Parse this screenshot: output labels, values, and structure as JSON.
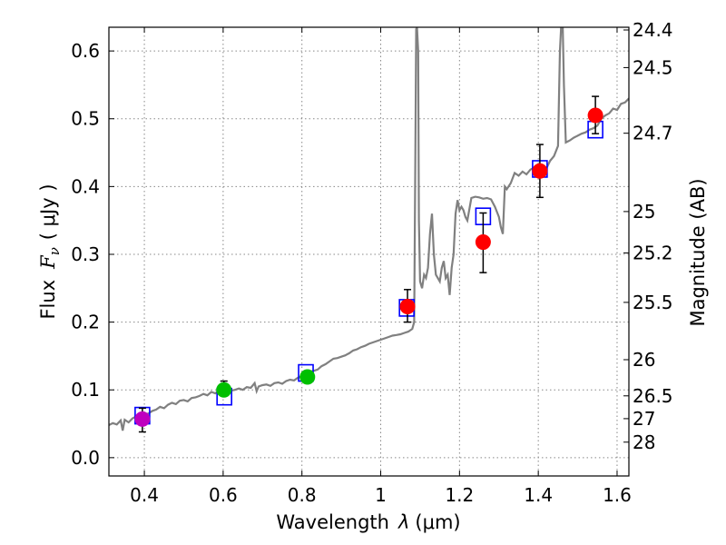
{
  "chart_data": {
    "type": "scatter",
    "xlabel_text": "Wavelength",
    "xlabel_symbol": "λ",
    "xlabel_unit": "(μm)",
    "ylabel_text": "Flux",
    "ylabel_symbol": "F",
    "ylabel_subscript": "ν",
    "ylabel_unit": "( μJy )",
    "y2label": "Magnitude (AB)",
    "xlim": [
      0.31,
      1.63
    ],
    "ylim": [
      -0.027,
      0.635
    ],
    "xticks": [
      {
        "v": 0.4,
        "label": "0.4"
      },
      {
        "v": 0.6,
        "label": "0.6"
      },
      {
        "v": 0.8,
        "label": "0.8"
      },
      {
        "v": 1.0,
        "label": "1"
      },
      {
        "v": 1.2,
        "label": "1.2"
      },
      {
        "v": 1.4,
        "label": "1.4"
      },
      {
        "v": 1.6,
        "label": "1.6"
      }
    ],
    "yticks": [
      {
        "v": 0.0,
        "label": "0.0"
      },
      {
        "v": 0.1,
        "label": "0.1"
      },
      {
        "v": 0.2,
        "label": "0.2"
      },
      {
        "v": 0.3,
        "label": "0.3"
      },
      {
        "v": 0.4,
        "label": "0.4"
      },
      {
        "v": 0.5,
        "label": "0.5"
      },
      {
        "v": 0.6,
        "label": "0.6"
      }
    ],
    "mag_ticks": [
      {
        "mag": 24.4,
        "label": "24.4"
      },
      {
        "mag": 24.5,
        "label": "24.5"
      },
      {
        "mag": 24.7,
        "label": "24.7"
      },
      {
        "mag": 25.0,
        "label": "25"
      },
      {
        "mag": 25.2,
        "label": "25.2"
      },
      {
        "mag": 25.5,
        "label": "25.5"
      },
      {
        "mag": 26.0,
        "label": "26"
      },
      {
        "mag": 26.5,
        "label": "26.5"
      },
      {
        "mag": 27.0,
        "label": "27"
      },
      {
        "mag": 28.0,
        "label": "28"
      }
    ],
    "spectrum": {
      "color": "#808080",
      "points": [
        [
          0.31,
          0.048
        ],
        [
          0.32,
          0.051
        ],
        [
          0.33,
          0.049
        ],
        [
          0.34,
          0.055
        ],
        [
          0.345,
          0.04
        ],
        [
          0.35,
          0.056
        ],
        [
          0.36,
          0.052
        ],
        [
          0.37,
          0.058
        ],
        [
          0.38,
          0.061
        ],
        [
          0.39,
          0.06
        ],
        [
          0.4,
          0.064
        ],
        [
          0.41,
          0.065
        ],
        [
          0.42,
          0.069
        ],
        [
          0.43,
          0.071
        ],
        [
          0.44,
          0.075
        ],
        [
          0.45,
          0.073
        ],
        [
          0.46,
          0.078
        ],
        [
          0.47,
          0.081
        ],
        [
          0.48,
          0.079
        ],
        [
          0.49,
          0.084
        ],
        [
          0.5,
          0.085
        ],
        [
          0.51,
          0.083
        ],
        [
          0.52,
          0.088
        ],
        [
          0.53,
          0.089
        ],
        [
          0.54,
          0.091
        ],
        [
          0.55,
          0.094
        ],
        [
          0.56,
          0.092
        ],
        [
          0.57,
          0.097
        ],
        [
          0.58,
          0.095
        ],
        [
          0.59,
          0.099
        ],
        [
          0.6,
          0.097
        ],
        [
          0.61,
          0.096
        ],
        [
          0.62,
          0.099
        ],
        [
          0.63,
          0.1
        ],
        [
          0.64,
          0.102
        ],
        [
          0.65,
          0.1
        ],
        [
          0.66,
          0.104
        ],
        [
          0.67,
          0.103
        ],
        [
          0.68,
          0.11
        ],
        [
          0.685,
          0.098
        ],
        [
          0.69,
          0.105
        ],
        [
          0.7,
          0.107
        ],
        [
          0.71,
          0.108
        ],
        [
          0.72,
          0.106
        ],
        [
          0.73,
          0.11
        ],
        [
          0.74,
          0.111
        ],
        [
          0.75,
          0.109
        ],
        [
          0.76,
          0.113
        ],
        [
          0.77,
          0.115
        ],
        [
          0.78,
          0.114
        ],
        [
          0.79,
          0.118
        ],
        [
          0.8,
          0.12
        ],
        [
          0.81,
          0.124
        ],
        [
          0.82,
          0.127
        ],
        [
          0.83,
          0.128
        ],
        [
          0.84,
          0.13
        ],
        [
          0.85,
          0.135
        ],
        [
          0.86,
          0.138
        ],
        [
          0.87,
          0.142
        ],
        [
          0.88,
          0.146
        ],
        [
          0.89,
          0.147
        ],
        [
          0.9,
          0.149
        ],
        [
          0.91,
          0.151
        ],
        [
          0.92,
          0.154
        ],
        [
          0.93,
          0.158
        ],
        [
          0.94,
          0.16
        ],
        [
          0.95,
          0.163
        ],
        [
          0.96,
          0.165
        ],
        [
          0.97,
          0.168
        ],
        [
          0.98,
          0.17
        ],
        [
          0.99,
          0.172
        ],
        [
          1.0,
          0.174
        ],
        [
          1.01,
          0.176
        ],
        [
          1.02,
          0.178
        ],
        [
          1.03,
          0.18
        ],
        [
          1.04,
          0.181
        ],
        [
          1.05,
          0.182
        ],
        [
          1.06,
          0.184
        ],
        [
          1.07,
          0.186
        ],
        [
          1.08,
          0.19
        ],
        [
          1.085,
          0.2
        ],
        [
          1.088,
          0.45
        ],
        [
          1.09,
          0.632
        ],
        [
          1.092,
          0.635
        ],
        [
          1.095,
          0.6
        ],
        [
          1.097,
          0.35
        ],
        [
          1.1,
          0.26
        ],
        [
          1.105,
          0.25
        ],
        [
          1.11,
          0.27
        ],
        [
          1.115,
          0.265
        ],
        [
          1.12,
          0.28
        ],
        [
          1.125,
          0.33
        ],
        [
          1.13,
          0.36
        ],
        [
          1.135,
          0.3
        ],
        [
          1.14,
          0.27
        ],
        [
          1.15,
          0.26
        ],
        [
          1.155,
          0.28
        ],
        [
          1.16,
          0.29
        ],
        [
          1.165,
          0.265
        ],
        [
          1.17,
          0.27
        ],
        [
          1.175,
          0.24
        ],
        [
          1.18,
          0.28
        ],
        [
          1.185,
          0.3
        ],
        [
          1.19,
          0.36
        ],
        [
          1.195,
          0.38
        ],
        [
          1.2,
          0.365
        ],
        [
          1.205,
          0.37
        ],
        [
          1.21,
          0.365
        ],
        [
          1.215,
          0.355
        ],
        [
          1.22,
          0.35
        ],
        [
          1.23,
          0.383
        ],
        [
          1.24,
          0.385
        ],
        [
          1.25,
          0.384
        ],
        [
          1.26,
          0.382
        ],
        [
          1.27,
          0.383
        ],
        [
          1.28,
          0.381
        ],
        [
          1.29,
          0.37
        ],
        [
          1.3,
          0.355
        ],
        [
          1.305,
          0.34
        ],
        [
          1.31,
          0.33
        ],
        [
          1.315,
          0.4
        ],
        [
          1.32,
          0.396
        ],
        [
          1.33,
          0.405
        ],
        [
          1.34,
          0.42
        ],
        [
          1.35,
          0.416
        ],
        [
          1.36,
          0.422
        ],
        [
          1.37,
          0.418
        ],
        [
          1.38,
          0.425
        ],
        [
          1.39,
          0.428
        ],
        [
          1.4,
          0.424
        ],
        [
          1.41,
          0.43
        ],
        [
          1.42,
          0.426
        ],
        [
          1.43,
          0.438
        ],
        [
          1.44,
          0.445
        ],
        [
          1.45,
          0.46
        ],
        [
          1.455,
          0.6
        ],
        [
          1.458,
          0.635
        ],
        [
          1.462,
          0.635
        ],
        [
          1.465,
          0.55
        ],
        [
          1.47,
          0.465
        ],
        [
          1.48,
          0.468
        ],
        [
          1.49,
          0.472
        ],
        [
          1.5,
          0.475
        ],
        [
          1.51,
          0.478
        ],
        [
          1.52,
          0.48
        ],
        [
          1.53,
          0.484
        ],
        [
          1.54,
          0.486
        ],
        [
          1.55,
          0.49
        ],
        [
          1.56,
          0.5
        ],
        [
          1.57,
          0.505
        ],
        [
          1.58,
          0.508
        ],
        [
          1.59,
          0.515
        ],
        [
          1.6,
          0.513
        ],
        [
          1.61,
          0.522
        ],
        [
          1.62,
          0.524
        ],
        [
          1.63,
          0.53
        ]
      ]
    },
    "model_points": [
      {
        "x": 0.395,
        "y": 0.062
      },
      {
        "x": 0.603,
        "y": 0.09
      },
      {
        "x": 0.81,
        "y": 0.125
      },
      {
        "x": 1.066,
        "y": 0.221
      },
      {
        "x": 1.26,
        "y": 0.356
      },
      {
        "x": 1.404,
        "y": 0.426
      },
      {
        "x": 1.545,
        "y": 0.484
      }
    ],
    "observations": [
      {
        "x": 0.395,
        "y": 0.057,
        "err_low": 0.038,
        "err_high": 0.073,
        "color": "#bf00bf"
      },
      {
        "x": 0.602,
        "y": 0.1,
        "err_low": 0.092,
        "err_high": 0.113,
        "color": "#00bf00"
      },
      {
        "x": 0.814,
        "y": 0.119,
        "err_low": 0.113,
        "err_high": 0.127,
        "color": "#00bf00"
      },
      {
        "x": 1.068,
        "y": 0.223,
        "err_low": 0.2,
        "err_high": 0.248,
        "color": "#ff0000"
      },
      {
        "x": 1.26,
        "y": 0.318,
        "err_low": 0.273,
        "err_high": 0.361,
        "color": "#ff0000"
      },
      {
        "x": 1.404,
        "y": 0.423,
        "err_low": 0.384,
        "err_high": 0.462,
        "color": "#ff0000"
      },
      {
        "x": 1.545,
        "y": 0.505,
        "err_low": 0.478,
        "err_high": 0.533,
        "color": "#ff0000"
      }
    ],
    "model_color": "#0000ff",
    "errorbar_color": "#000000",
    "grid": true
  }
}
